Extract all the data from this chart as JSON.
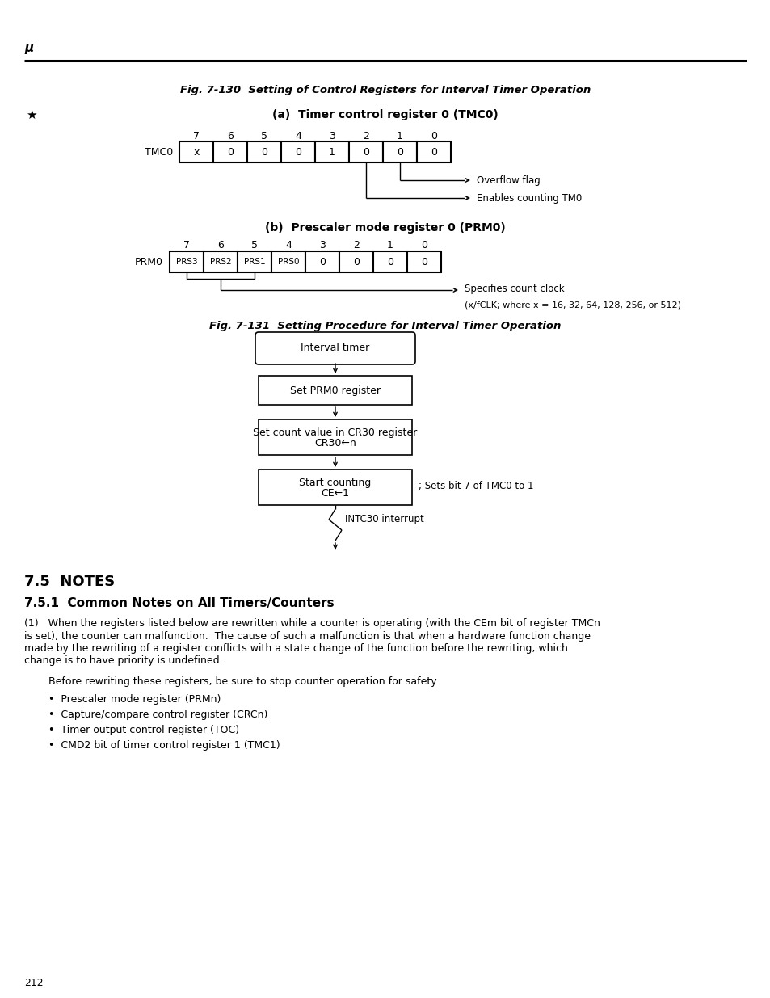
{
  "title_fig130": "Fig. 7-130  Setting of Control Registers for Interval Timer Operation",
  "subtitle_a": "(a)  Timer control register 0 (TMC0)",
  "subtitle_b": "(b)  Prescaler mode register 0 (PRM0)",
  "title_fig131": "Fig. 7-131  Setting Procedure for Interval Timer Operation",
  "mu_label": "μ",
  "star_label": "★",
  "tmc0_label": "TMC0",
  "prm0_label": "PRM0",
  "tmc0_bits": [
    "x",
    "0",
    "0",
    "0",
    "1",
    "0",
    "0",
    "0"
  ],
  "prm0_bits": [
    "PRS3",
    "PRS2",
    "PRS1",
    "PRS0",
    "0",
    "0",
    "0",
    "0"
  ],
  "bit_numbers": [
    "7",
    "6",
    "5",
    "4",
    "3",
    "2",
    "1",
    "0"
  ],
  "overflow_flag": "Overflow flag",
  "enables_counting": "Enables counting TM0",
  "specifies_count1": "Specifies count clock",
  "specifies_count2": "(x/fCLK; where x = 16, 32, 64, 128, 256, or 512)",
  "flow_box1": "Interval timer",
  "flow_box2": "Set PRM0 register",
  "flow_box3_line1": "Set count value in CR30 register",
  "flow_box3_line2": "CR30←n",
  "flow_box4_line1": "Start counting",
  "flow_box4_line2": "CE←1",
  "flow_annotation": "; Sets bit 7 of TMC0 to 1",
  "intc30": "INTC30 interrupt",
  "notes_title": "7.5  NOTES",
  "notes_sub": "7.5.1  Common Notes on All Timers/Counters",
  "note1_p1_line1": "(1)   When the registers listed below are rewritten while a counter is operating (with the CEm bit of register TMCn",
  "note1_p1_line2": "is set), the counter can malfunction.  The cause of such a malfunction is that when a hardware function change",
  "note1_p1_line3": "made by the rewriting of a register conflicts with a state change of the function before the rewriting, which",
  "note1_p1_line4": "change is to have priority is undefined.",
  "note1_before": "Before rewriting these registers, be sure to stop counter operation for safety.",
  "bullet1": "•  Prescaler mode register (PRMn)",
  "bullet2": "•  Capture/compare control register (CRCn)",
  "bullet3": "•  Timer output control register (TOC)",
  "bullet4": "•  CMD2 bit of timer control register 1 (TMC1)",
  "page_number": "212",
  "bg_color": "#ffffff",
  "text_color": "#000000"
}
